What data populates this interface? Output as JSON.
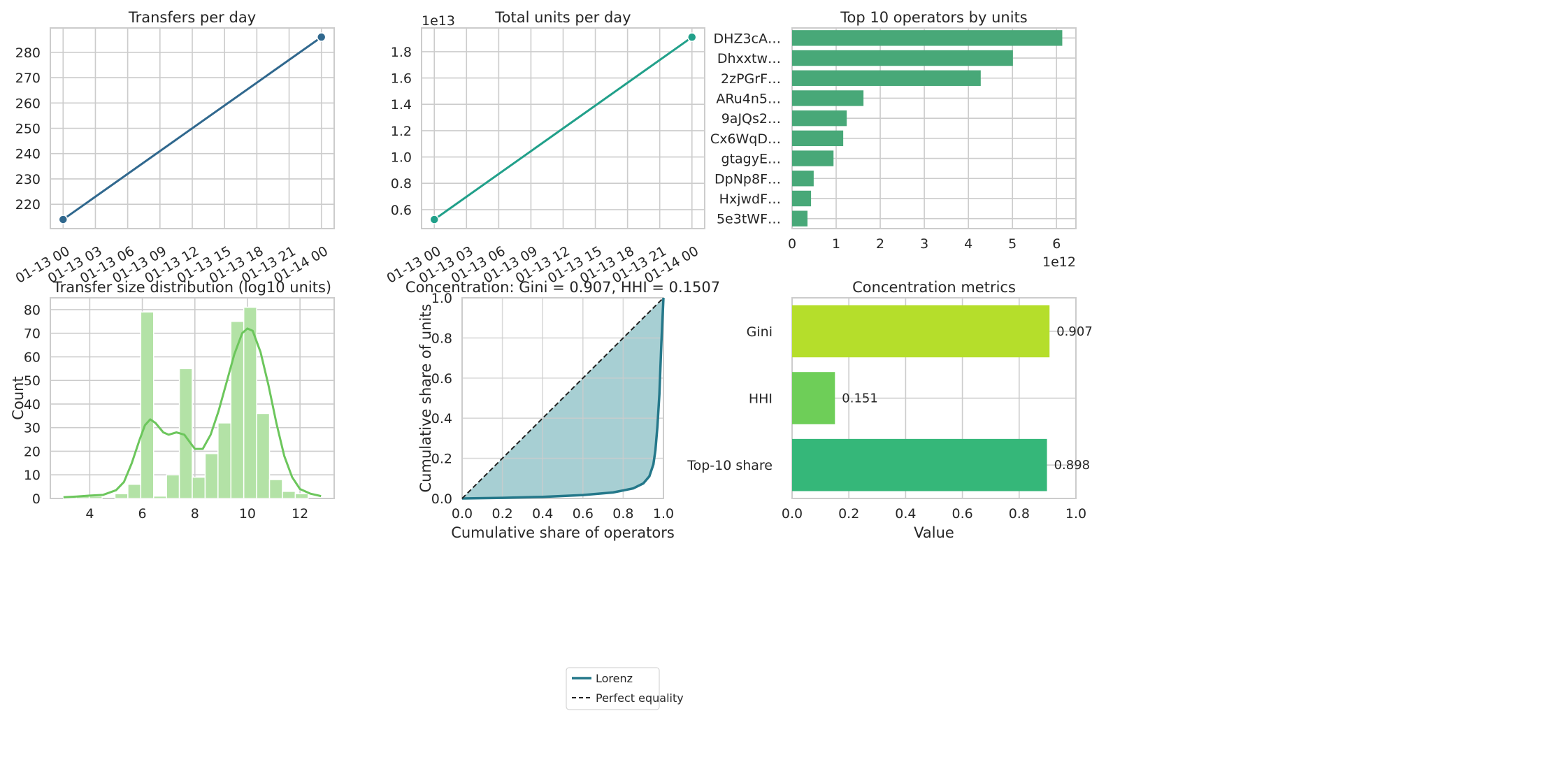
{
  "chart_data": [
    {
      "id": "transfers",
      "type": "line",
      "title": "Transfers per day",
      "xlabel": "",
      "ylabel": "",
      "x_ticks": [
        "01-13 00",
        "01-13 03",
        "01-13 06",
        "01-13 09",
        "01-13 12",
        "01-13 15",
        "01-13 18",
        "01-13 21",
        "01-14 00"
      ],
      "x": [
        "01-13 00",
        "01-14 00"
      ],
      "y": [
        214,
        286
      ],
      "ylim": [
        210.4,
        289.6
      ],
      "y_ticks": [
        220,
        230,
        240,
        250,
        260,
        270,
        280
      ],
      "color": "#30688e",
      "grid": true
    },
    {
      "id": "units",
      "type": "line",
      "title": "Total units per day",
      "xlabel": "",
      "ylabel": "",
      "offset_text": "1e13",
      "x_ticks": [
        "01-13 00",
        "01-13 03",
        "01-13 06",
        "01-13 09",
        "01-13 12",
        "01-13 15",
        "01-13 18",
        "01-13 21",
        "01-14 00"
      ],
      "x": [
        "01-13 00",
        "01-14 00"
      ],
      "y": [
        0.525,
        1.91
      ],
      "ylim": [
        0.456,
        1.98
      ],
      "y_ticks": [
        "0.6",
        "0.8",
        "1.0",
        "1.2",
        "1.4",
        "1.6",
        "1.8"
      ],
      "color": "#21a08a",
      "grid": true
    },
    {
      "id": "top_operators",
      "type": "bar",
      "orientation": "horizontal",
      "title": "Top 10 operators by units",
      "xlabel": "",
      "ylabel": "",
      "offset_text": "1e12",
      "categories": [
        "DHZ3cA…",
        "Dhxxtw…",
        "2zPGrF…",
        "ARu4n5…",
        "9aJQs2…",
        "Cx6WqD…",
        "gtagyE…",
        "DpNp8F…",
        "HxjwdF…",
        "5e3tWF…"
      ],
      "values": [
        6.13,
        5.01,
        4.28,
        1.62,
        1.24,
        1.16,
        0.94,
        0.49,
        0.43,
        0.35
      ],
      "xlim": [
        0,
        6.44
      ],
      "x_ticks": [
        0,
        1,
        2,
        3,
        4,
        5,
        6
      ],
      "color": "#48a878",
      "grid": true
    },
    {
      "id": "size_dist",
      "type": "bar",
      "subtype": "histogram",
      "title": "Transfer size distribution (log10 units)",
      "xlabel": "",
      "ylabel": "Count",
      "bins_start": 3.0,
      "bin_width": 0.49,
      "counts": [
        1,
        1,
        1,
        0,
        2,
        6,
        79,
        1,
        10,
        55,
        9,
        19,
        32,
        75,
        81,
        36,
        8,
        3,
        2
      ],
      "xlim": [
        2.5,
        13.3
      ],
      "ylim": [
        0,
        85
      ],
      "x_ticks": [
        4,
        6,
        8,
        10,
        12
      ],
      "y_ticks": [
        0,
        10,
        20,
        30,
        40,
        50,
        60,
        70,
        80
      ],
      "kde_x": [
        3.0,
        3.5,
        4.0,
        4.5,
        5.0,
        5.3,
        5.6,
        5.9,
        6.1,
        6.3,
        6.5,
        6.8,
        7.0,
        7.3,
        7.6,
        7.8,
        8.0,
        8.3,
        8.6,
        8.9,
        9.2,
        9.5,
        9.8,
        10.0,
        10.2,
        10.5,
        10.8,
        11.1,
        11.4,
        11.7,
        12.0,
        12.4,
        12.8
      ],
      "kde_y": [
        0.5,
        0.8,
        1.2,
        1.5,
        3.5,
        7,
        15,
        25,
        31,
        33.5,
        32,
        28,
        27,
        28,
        27,
        24,
        21,
        21,
        27,
        37,
        49,
        61,
        70,
        72,
        71,
        62,
        48,
        32,
        18,
        9,
        4,
        2,
        1
      ],
      "bar_color": "#b3e2a6",
      "line_color": "#6cc65c",
      "grid": true
    },
    {
      "id": "lorenz",
      "type": "area",
      "title": "Concentration: Gini = 0.907, HHI = 0.1507",
      "xlabel": "Cumulative share of operators",
      "ylabel": "Cumulative share of units",
      "xlim": [
        0,
        1
      ],
      "ylim": [
        0,
        1
      ],
      "x_ticks": [
        "0.0",
        "0.2",
        "0.4",
        "0.6",
        "0.8",
        "1.0"
      ],
      "y_ticks": [
        "0.0",
        "0.2",
        "0.4",
        "0.6",
        "0.8",
        "1.0"
      ],
      "series": [
        {
          "name": "Lorenz",
          "x": [
            0,
            0.2,
            0.4,
            0.6,
            0.75,
            0.85,
            0.9,
            0.93,
            0.95,
            0.96,
            0.97,
            0.98,
            0.99,
            1.0
          ],
          "y": [
            0,
            0.003,
            0.008,
            0.017,
            0.03,
            0.05,
            0.075,
            0.11,
            0.17,
            0.24,
            0.36,
            0.52,
            0.78,
            1.0
          ],
          "color": "#24788a"
        },
        {
          "name": "Perfect equality",
          "x": [
            0,
            1
          ],
          "y": [
            0,
            1
          ],
          "color": "#222222"
        }
      ],
      "fill_color": "#a7cfd3",
      "legend": "lower-right",
      "grid": true
    },
    {
      "id": "metrics",
      "type": "bar",
      "orientation": "horizontal",
      "title": "Concentration metrics",
      "xlabel": "Value",
      "ylabel": "",
      "categories": [
        "Gini",
        "HHI",
        "Top-10 share"
      ],
      "values": [
        0.907,
        0.151,
        0.898
      ],
      "value_labels": [
        "0.907",
        "0.151",
        "0.898"
      ],
      "colors": [
        "#b5de2b",
        "#6ece58",
        "#35b779"
      ],
      "xlim": [
        0,
        1
      ],
      "x_ticks": [
        "0.0",
        "0.2",
        "0.4",
        "0.6",
        "0.8",
        "1.0"
      ],
      "grid": true
    }
  ]
}
